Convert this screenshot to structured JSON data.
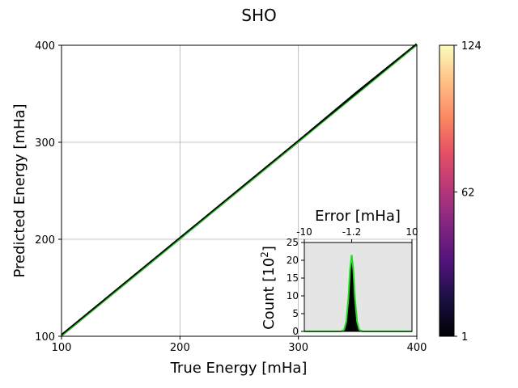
{
  "chart_data": [
    {
      "type": "scatter",
      "title": "SHO",
      "xlabel": "True Energy [mHa]",
      "ylabel": "Predicted Energy [mHa]",
      "xlim": [
        100,
        400
      ],
      "ylim": [
        100,
        400
      ],
      "xticks": [
        "100",
        "200",
        "300",
        "400"
      ],
      "yticks": [
        "100",
        "200",
        "300",
        "400"
      ],
      "grid": true,
      "reference_line": {
        "x": [
          100,
          400
        ],
        "y": [
          100,
          400
        ],
        "color": "#22cc22"
      },
      "series": [
        {
          "x": [
            100,
            150,
            200,
            250,
            300,
            350,
            400
          ],
          "y": [
            101,
            151,
            201,
            251,
            301,
            352,
            401
          ]
        }
      ],
      "colorbar": {
        "colormap": "magma",
        "min": 1,
        "max": 124,
        "ticks": [
          "1",
          "62",
          "124"
        ]
      }
    },
    {
      "type": "area",
      "xlabel": "Error [mHa]",
      "ylabel": "Count [10",
      "ylabel_sup": "2",
      "ylabel_end": "]",
      "xlim": [
        -10,
        10
      ],
      "ylim": [
        0,
        25
      ],
      "xticks": [
        "-10",
        "-1.2",
        "10"
      ],
      "yticks": [
        "0",
        "5",
        "10",
        "15",
        "20",
        "25"
      ],
      "background": "#e5e5e5",
      "histogram": {
        "x": [
          -10,
          -3.2,
          -2.6,
          -2.2,
          -1.8,
          -1.5,
          -1.2,
          -0.9,
          -0.6,
          -0.2,
          0.2,
          0.8,
          10
        ],
        "y": [
          0,
          0,
          0.4,
          2.5,
          9,
          17,
          21,
          17,
          9,
          2.5,
          0.4,
          0,
          0
        ]
      },
      "fit": {
        "color": "#22dd22",
        "x": [
          -10,
          -3.2,
          -2.6,
          -2.2,
          -1.8,
          -1.5,
          -1.2,
          -0.9,
          -0.6,
          -0.2,
          0.2,
          0.8,
          10
        ],
        "y": [
          0,
          0,
          0.5,
          2.8,
          9.5,
          17.5,
          21.5,
          17.5,
          9.5,
          2.8,
          0.5,
          0,
          0
        ]
      }
    }
  ]
}
